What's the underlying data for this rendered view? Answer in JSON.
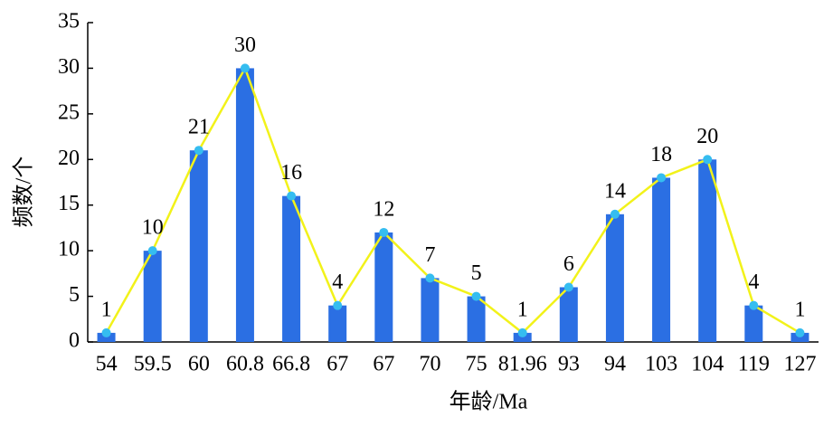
{
  "chart_data": {
    "type": "bar",
    "x_label": "年龄/Ma",
    "y_label": "频数/个",
    "categories": [
      "54",
      "59.5",
      "60",
      "60.8",
      "66.8",
      "67",
      "67",
      "70",
      "75",
      "81.96",
      "93",
      "94",
      "103",
      "104",
      "119",
      "127"
    ],
    "values": [
      1,
      10,
      21,
      30,
      16,
      4,
      12,
      7,
      5,
      1,
      6,
      14,
      18,
      20,
      4,
      1
    ],
    "color": "#2b6fe3",
    "line_color": "#f2f21a",
    "marker_color": "#35bdf0",
    "ylim": [
      0,
      35
    ],
    "yticks": [
      0,
      5,
      10,
      15,
      20,
      25,
      30,
      35
    ]
  }
}
